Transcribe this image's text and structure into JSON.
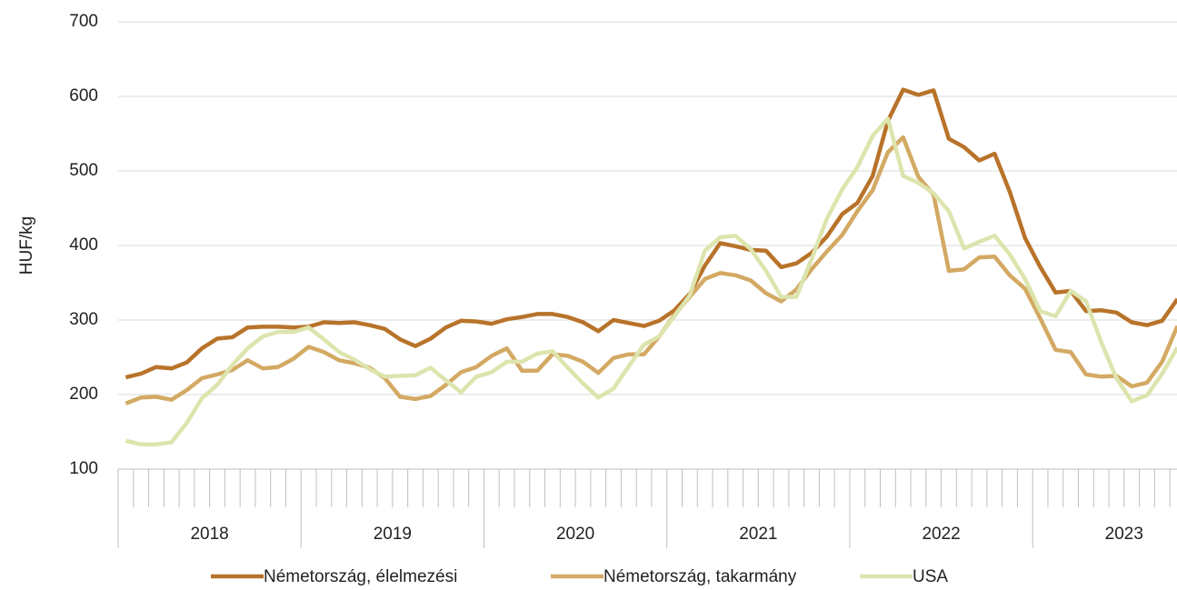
{
  "chart_data": {
    "type": "line",
    "y_label": "HUF/kg",
    "years": [
      "2018",
      "2019",
      "2020",
      "2021",
      "2022",
      "2023"
    ],
    "ylim": [
      100,
      700
    ],
    "yticks": [
      100,
      200,
      300,
      400,
      500,
      600,
      700
    ],
    "grid": true,
    "legend": "bottom",
    "series": [
      {
        "name": "Németország, élelmezési",
        "color": "#b8732a",
        "values": [
          223,
          228,
          237,
          235,
          243,
          262,
          275,
          277,
          290,
          291,
          291,
          290,
          291,
          297,
          296,
          297,
          293,
          288,
          274,
          265,
          275,
          290,
          299,
          298,
          295,
          301,
          304,
          308,
          308,
          304,
          297,
          285,
          300,
          296,
          292,
          299,
          313,
          335,
          373,
          403,
          399,
          394,
          393,
          371,
          376,
          390,
          412,
          442,
          457,
          493,
          567,
          609,
          602,
          608,
          543,
          532,
          514,
          523,
          472,
          410,
          371,
          337,
          339,
          312,
          313,
          310,
          297,
          293,
          299,
          328
        ]
      },
      {
        "name": "Németország, takarmány",
        "color": "#d3a963",
        "values": [
          188,
          196,
          197,
          193,
          206,
          222,
          227,
          233,
          246,
          235,
          237,
          248,
          264,
          257,
          246,
          242,
          236,
          222,
          197,
          194,
          198,
          213,
          230,
          237,
          252,
          262,
          232,
          232,
          254,
          252,
          244,
          229,
          249,
          254,
          254,
          278,
          307,
          331,
          355,
          363,
          360,
          353,
          336,
          325,
          341,
          368,
          392,
          414,
          446,
          474,
          525,
          545,
          492,
          468,
          366,
          368,
          384,
          385,
          360,
          342,
          302,
          260,
          257,
          227,
          224,
          225,
          211,
          216,
          244,
          292
        ]
      },
      {
        "name": "USA",
        "color": "#dde4ad",
        "values": [
          138,
          133,
          133,
          136,
          162,
          195,
          213,
          240,
          262,
          278,
          284,
          284,
          290,
          274,
          257,
          247,
          234,
          224,
          225,
          226,
          236,
          219,
          203,
          224,
          230,
          244,
          244,
          255,
          258,
          236,
          215,
          196,
          208,
          238,
          267,
          278,
          305,
          333,
          393,
          411,
          413,
          395,
          366,
          331,
          331,
          382,
          436,
          475,
          505,
          547,
          570,
          493,
          484,
          470,
          446,
          396,
          405,
          413,
          388,
          355,
          312,
          305,
          339,
          325,
          270,
          222,
          191,
          199,
          228,
          263
        ]
      }
    ]
  }
}
